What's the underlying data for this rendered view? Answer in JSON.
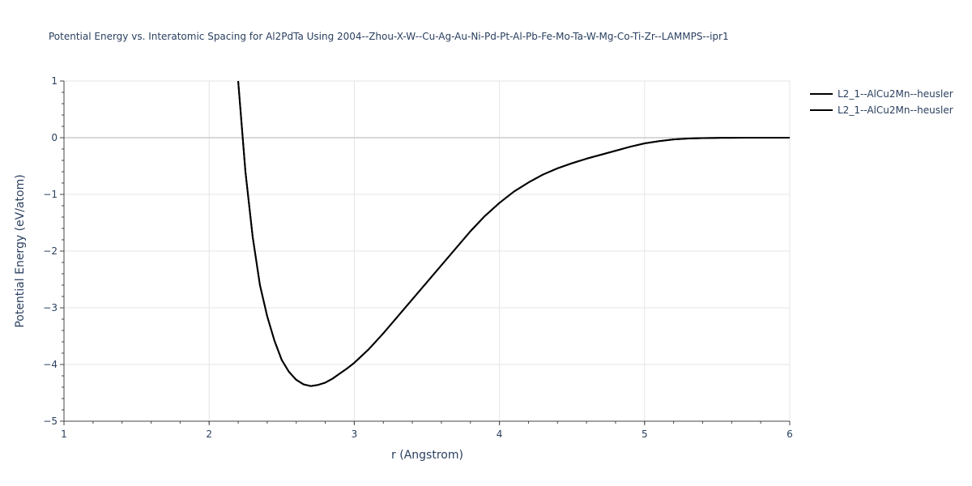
{
  "chart_data": {
    "type": "line",
    "title": "Potential Energy vs. Interatomic Spacing for Al2PdTa Using 2004--Zhou-X-W--Cu-Ag-Au-Ni-Pd-Pt-Al-Pb-Fe-Mo-Ta-W-Mg-Co-Ti-Zr--LAMMPS--ipr1",
    "xlabel": "r (Angstrom)",
    "ylabel": "Potential Energy (eV/atom)",
    "xlim": [
      1,
      6
    ],
    "ylim": [
      -5,
      1
    ],
    "x_ticks": [
      1,
      2,
      3,
      4,
      5,
      6
    ],
    "y_ticks": [
      1,
      0,
      -1,
      -2,
      -3,
      -4,
      -5
    ],
    "x_tick_labels": [
      "1",
      "2",
      "3",
      "4",
      "5",
      "6"
    ],
    "y_tick_labels": [
      "1",
      "0",
      "−1",
      "−2",
      "−3",
      "−4",
      "−5"
    ],
    "grid": true,
    "legend_position": "top-right",
    "series": [
      {
        "name": "L2_1--AlCu2Mn--heusler",
        "color": "#000000",
        "x": [
          2.2,
          2.25,
          2.3,
          2.35,
          2.4,
          2.45,
          2.5,
          2.55,
          2.6,
          2.65,
          2.7,
          2.75,
          2.8,
          2.85,
          2.9,
          2.95,
          3.0,
          3.1,
          3.2,
          3.3,
          3.4,
          3.5,
          3.6,
          3.7,
          3.8,
          3.9,
          4.0,
          4.1,
          4.2,
          4.3,
          4.4,
          4.5,
          4.6,
          4.7,
          4.8,
          4.9,
          5.0,
          5.1,
          5.2,
          5.3,
          5.4,
          5.5,
          5.6,
          5.7,
          5.8,
          5.9,
          6.0
        ],
        "y": [
          1.0,
          -0.6,
          -1.75,
          -2.6,
          -3.15,
          -3.58,
          -3.92,
          -4.13,
          -4.27,
          -4.35,
          -4.38,
          -4.36,
          -4.32,
          -4.25,
          -4.16,
          -4.07,
          -3.97,
          -3.73,
          -3.45,
          -3.15,
          -2.85,
          -2.55,
          -2.25,
          -1.95,
          -1.65,
          -1.38,
          -1.15,
          -0.95,
          -0.79,
          -0.65,
          -0.54,
          -0.45,
          -0.37,
          -0.3,
          -0.23,
          -0.16,
          -0.1,
          -0.06,
          -0.03,
          -0.015,
          -0.007,
          -0.003,
          -0.001,
          0.0,
          0.0,
          0.0,
          0.0
        ]
      },
      {
        "name": "L2_1--AlCu2Mn--heusler",
        "color": "#000000",
        "x": [
          2.2,
          2.25,
          2.3,
          2.35,
          2.4,
          2.45,
          2.5,
          2.55,
          2.6,
          2.65,
          2.7,
          2.75,
          2.8,
          2.85,
          2.9,
          2.95,
          3.0,
          3.1,
          3.2,
          3.3,
          3.4,
          3.5,
          3.6,
          3.7,
          3.8,
          3.9,
          4.0,
          4.1,
          4.2,
          4.3,
          4.4,
          4.5,
          4.6,
          4.7,
          4.8,
          4.9,
          5.0,
          5.1,
          5.2,
          5.3,
          5.4,
          5.5,
          5.6,
          5.7,
          5.8,
          5.9,
          6.0
        ],
        "y": [
          1.0,
          -0.6,
          -1.75,
          -2.6,
          -3.15,
          -3.58,
          -3.92,
          -4.13,
          -4.27,
          -4.35,
          -4.38,
          -4.36,
          -4.32,
          -4.25,
          -4.16,
          -4.07,
          -3.97,
          -3.73,
          -3.45,
          -3.15,
          -2.85,
          -2.55,
          -2.25,
          -1.95,
          -1.65,
          -1.38,
          -1.15,
          -0.95,
          -0.79,
          -0.65,
          -0.54,
          -0.45,
          -0.37,
          -0.3,
          -0.23,
          -0.16,
          -0.1,
          -0.06,
          -0.03,
          -0.015,
          -0.007,
          -0.003,
          -0.001,
          0.0,
          0.0,
          0.0,
          0.0
        ]
      }
    ]
  }
}
